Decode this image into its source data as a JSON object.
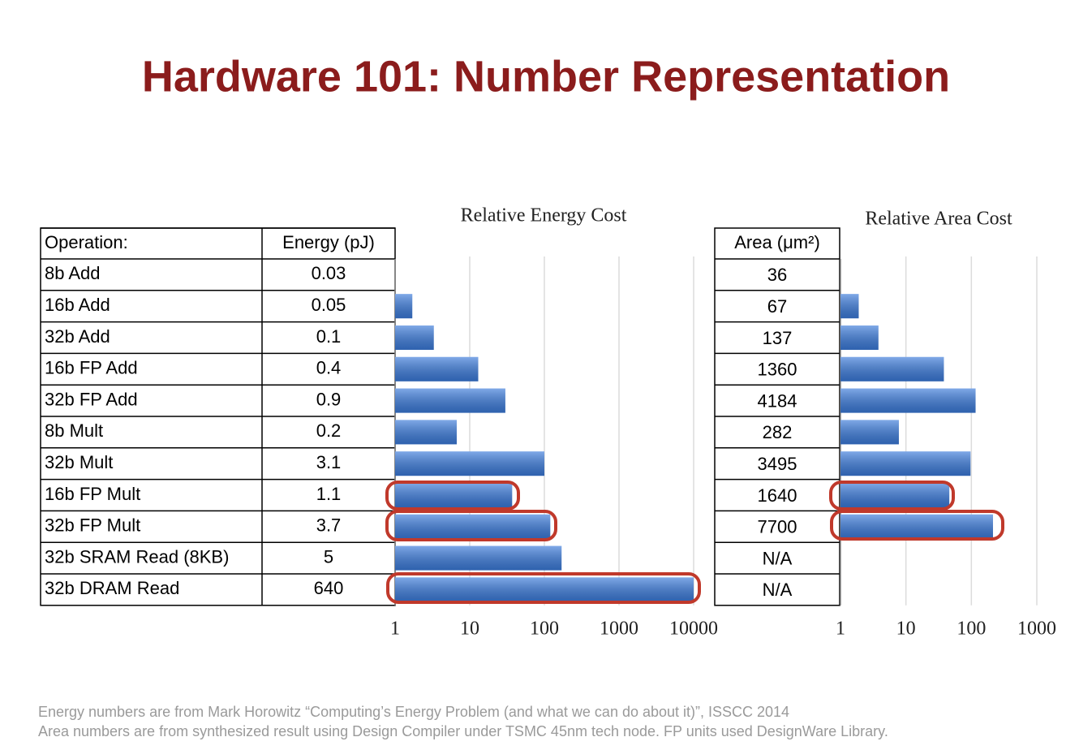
{
  "title": "Hardware 101: Number Representation",
  "energy_table": {
    "header": [
      "Operation:",
      "Energy (pJ)"
    ],
    "rows": [
      [
        "8b Add",
        0.03
      ],
      [
        "16b Add",
        0.05
      ],
      [
        "32b Add",
        0.1
      ],
      [
        "16b FP Add",
        0.4
      ],
      [
        "32b FP Add",
        0.9
      ],
      [
        "8b Mult",
        0.2
      ],
      [
        "32b Mult",
        3.1
      ],
      [
        "16b FP Mult",
        1.1
      ],
      [
        "32b FP Mult",
        3.7
      ],
      [
        "32b SRAM Read (8KB)",
        5
      ],
      [
        "32b DRAM Read",
        640
      ]
    ]
  },
  "area_table": {
    "header": "Area (μm²)",
    "rows": [
      36,
      67,
      137,
      1360,
      4184,
      282,
      3495,
      1640,
      7700,
      "N/A",
      "N/A"
    ]
  },
  "chart_data": [
    {
      "type": "bar",
      "title": "Relative Energy Cost",
      "values": [
        1,
        1.7,
        3.3,
        13,
        30,
        6.7,
        100,
        37,
        120,
        170,
        10000
      ],
      "color": "#3b7bdb",
      "log": true,
      "grid": true,
      "xlim": [
        1,
        10000
      ],
      "xticks": [
        1,
        10,
        100,
        1000,
        10000
      ]
    },
    {
      "type": "bar",
      "title": "Relative Area Cost",
      "values": [
        1,
        1.9,
        3.8,
        38,
        116,
        7.8,
        97,
        46,
        214,
        null,
        null
      ],
      "color": "#3b7bdb",
      "log": true,
      "grid": true,
      "xlim": [
        1,
        1000
      ],
      "xticks": [
        1,
        10,
        100,
        1000
      ]
    }
  ],
  "footnotes": [
    "Energy numbers are from Mark Horowitz “Computing’s Energy Problem (and what we can do about it)”, ISSCC 2014",
    "Area numbers are from synthesized result using Design Compiler under TSMC 45nm tech node. FP units used DesignWare Library."
  ]
}
